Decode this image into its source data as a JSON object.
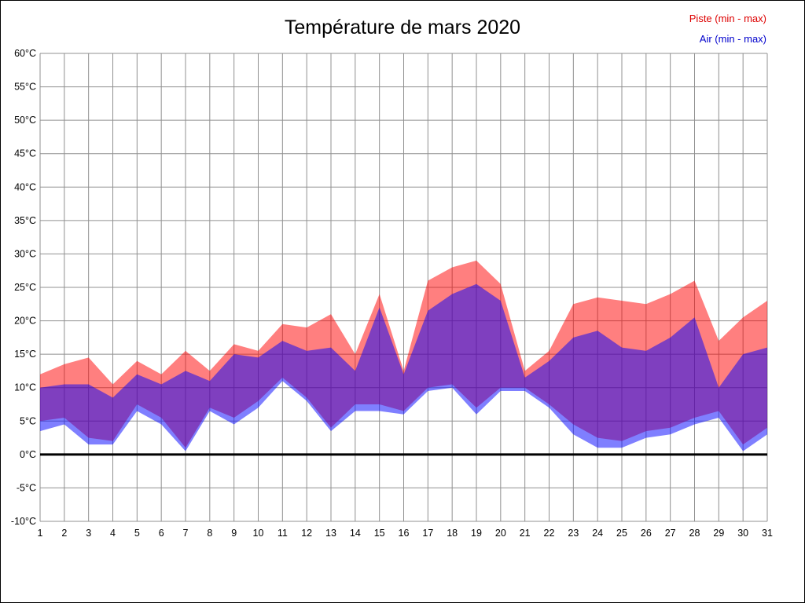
{
  "title": "Température de mars 2020",
  "legend": {
    "piste_label": "Piste (min - max)",
    "air_label": "Air (min - max)"
  },
  "colors": {
    "piste": "#ff0000",
    "air": "#0000ff",
    "piste_legend": "#dd0000",
    "air_legend": "#0000cc",
    "grid": "#909090",
    "zero_line": "#000000",
    "tick_text": "#000000",
    "band_opacity": 0.5
  },
  "chart_data": {
    "type": "area",
    "title": "Température de mars 2020",
    "xlabel": "",
    "ylabel": "",
    "ylim": [
      -10,
      60
    ],
    "grid": true,
    "legend_position": "top-right",
    "zero_line": 0,
    "x": [
      1,
      2,
      3,
      4,
      5,
      6,
      7,
      8,
      9,
      10,
      11,
      12,
      13,
      14,
      15,
      16,
      17,
      18,
      19,
      20,
      21,
      22,
      23,
      24,
      25,
      26,
      27,
      28,
      29,
      30,
      31
    ],
    "x_tick_labels": [
      "1",
      "2",
      "3",
      "4",
      "5",
      "6",
      "7",
      "8",
      "9",
      "10",
      "11",
      "12",
      "13",
      "14",
      "15",
      "16",
      "17",
      "18",
      "19",
      "20",
      "21",
      "22",
      "23",
      "24",
      "25",
      "26",
      "27",
      "28",
      "29",
      "30",
      "31"
    ],
    "y_ticks": [
      {
        "value": 60,
        "label": "60°C"
      },
      {
        "value": 55,
        "label": "55°C"
      },
      {
        "value": 50,
        "label": "50°C"
      },
      {
        "value": 45,
        "label": "45°C"
      },
      {
        "value": 40,
        "label": "40°C"
      },
      {
        "value": 35,
        "label": "35°C"
      },
      {
        "value": 30,
        "label": "30°C"
      },
      {
        "value": 25,
        "label": "25°C"
      },
      {
        "value": 20,
        "label": "20°C"
      },
      {
        "value": 15,
        "label": "15°C"
      },
      {
        "value": 10,
        "label": "10°C"
      },
      {
        "value": 5,
        "label": "5°C"
      },
      {
        "value": 0,
        "label": "0°C"
      },
      {
        "value": -5,
        "label": "-5°C"
      },
      {
        "value": -10,
        "label": "-10°C"
      }
    ],
    "series": [
      {
        "name": "Piste (min - max)",
        "color": "#ff0000",
        "max": [
          12,
          13.5,
          14.5,
          10.5,
          14,
          12,
          15.5,
          12.5,
          16.5,
          15.5,
          19.5,
          19,
          21,
          15,
          24,
          12.5,
          26,
          28,
          29,
          25.5,
          12.5,
          15.5,
          22.5,
          23.5,
          23,
          22.5,
          24,
          26,
          17,
          20.5,
          23
        ],
        "min": [
          5,
          5.5,
          2.5,
          2,
          7.5,
          5.5,
          1,
          7,
          5.5,
          8,
          11.5,
          8.5,
          4,
          7.5,
          7.5,
          6.5,
          10,
          10.5,
          7,
          10,
          10,
          7.5,
          4.5,
          2.5,
          2,
          3.5,
          4,
          5.5,
          6.5,
          1.5,
          4
        ]
      },
      {
        "name": "Air (min - max)",
        "color": "#0000ff",
        "max": [
          10,
          10.5,
          10.5,
          8.5,
          12,
          10.5,
          12.5,
          11,
          15,
          14.5,
          17,
          15.5,
          16,
          12.5,
          22,
          12,
          21.5,
          24,
          25.5,
          23,
          11.5,
          14,
          17.5,
          18.5,
          16,
          15.5,
          17.5,
          20.5,
          10,
          15,
          16
        ],
        "min": [
          3.5,
          4.5,
          1.5,
          1.5,
          6.5,
          4.5,
          0.5,
          6.5,
          4.5,
          7,
          11,
          8,
          3.5,
          6.5,
          6.5,
          6,
          9.5,
          10,
          6,
          9.5,
          9.5,
          7,
          3,
          1,
          1,
          2.5,
          3,
          4.5,
          5.5,
          0.5,
          3
        ]
      }
    ]
  }
}
